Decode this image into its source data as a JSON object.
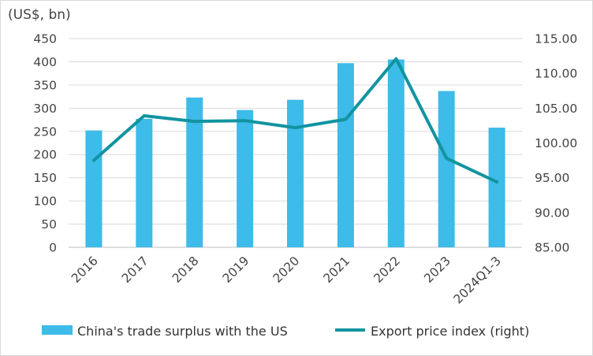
{
  "chart_data": {
    "type": "bar",
    "title": "",
    "ylabel_left": "(US$, bn)",
    "ylabel_right": "",
    "categories": [
      "2016",
      "2017",
      "2018",
      "2019",
      "2020",
      "2021",
      "2022",
      "2023",
      "2024Q1-3"
    ],
    "y_left": {
      "ylim": [
        0,
        450
      ],
      "ticks": [
        "0",
        "50",
        "100",
        "150",
        "200",
        "250",
        "300",
        "350",
        "400",
        "450"
      ]
    },
    "y_right": {
      "ylim": [
        85,
        115
      ],
      "ticks": [
        "85.00",
        "90.00",
        "95.00",
        "100.00",
        "105.00",
        "110.00",
        "115.00"
      ]
    },
    "series": [
      {
        "name": "China's trade surplus with the US",
        "type": "bar",
        "axis": "left",
        "color": "#3dbbe9",
        "values": [
          252,
          277,
          323,
          296,
          318,
          397,
          405,
          337,
          258
        ]
      },
      {
        "name": "Export price index (right)",
        "type": "line",
        "axis": "right",
        "color": "#1194a0",
        "values": [
          97.5,
          103.9,
          103.1,
          103.2,
          102.2,
          103.4,
          112.1,
          97.8,
          94.4
        ]
      }
    ],
    "grid": true,
    "legend": "bottom"
  }
}
